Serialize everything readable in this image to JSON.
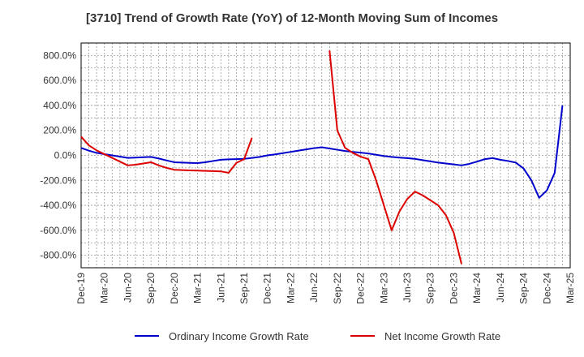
{
  "chart_data": {
    "type": "line",
    "title": "[3710]  Trend of Growth Rate (YoY) of 12-Month Moving Sum of Incomes",
    "xlabel": "",
    "ylabel": "",
    "ylim": [
      -900,
      900
    ],
    "yticks": [
      800,
      600,
      400,
      200,
      0,
      -200,
      -400,
      -600,
      -800
    ],
    "ytick_labels": [
      "800.0%",
      "600.0%",
      "400.0%",
      "200.0%",
      "0.0%",
      "-200.0%",
      "-400.0%",
      "-600.0%",
      "-800.0%"
    ],
    "x_ticks": [
      "Dec-19",
      "Mar-20",
      "Jun-20",
      "Sep-20",
      "Dec-20",
      "Mar-21",
      "Jun-21",
      "Sep-21",
      "Dec-21",
      "Mar-22",
      "Jun-22",
      "Sep-22",
      "Dec-22",
      "Mar-23",
      "Jun-23",
      "Sep-23",
      "Dec-23",
      "Mar-24",
      "Jun-24",
      "Sep-24",
      "Dec-24",
      "Mar-25"
    ],
    "x_months": [
      "2019-12",
      "2020-01",
      "2020-02",
      "2020-03",
      "2020-04",
      "2020-05",
      "2020-06",
      "2020-07",
      "2020-08",
      "2020-09",
      "2020-10",
      "2020-11",
      "2020-12",
      "2021-01",
      "2021-02",
      "2021-03",
      "2021-04",
      "2021-05",
      "2021-06",
      "2021-07",
      "2021-08",
      "2021-09",
      "2021-10",
      "2021-11",
      "2021-12",
      "2022-01",
      "2022-02",
      "2022-03",
      "2022-04",
      "2022-05",
      "2022-06",
      "2022-07",
      "2022-08",
      "2022-09",
      "2022-10",
      "2022-11",
      "2022-12",
      "2023-01",
      "2023-02",
      "2023-03",
      "2023-04",
      "2023-05",
      "2023-06",
      "2023-07",
      "2023-08",
      "2023-09",
      "2023-10",
      "2023-11",
      "2023-12",
      "2024-01",
      "2024-02",
      "2024-03",
      "2024-04",
      "2024-05",
      "2024-06",
      "2024-07",
      "2024-08",
      "2024-09",
      "2024-10",
      "2024-11",
      "2024-12",
      "2025-01",
      "2025-02",
      "2025-03"
    ],
    "grid": true,
    "legend_position": "bottom",
    "series": [
      {
        "name": "Ordinary Income Growth Rate",
        "color": "#0000cc",
        "values": [
          60,
          38,
          20,
          10,
          0,
          -10,
          -20,
          -18,
          -15,
          -12,
          -25,
          -40,
          -55,
          -58,
          -60,
          -62,
          -55,
          -45,
          -35,
          -32,
          -30,
          -28,
          -20,
          -12,
          0,
          8,
          18,
          28,
          38,
          48,
          58,
          65,
          55,
          45,
          35,
          28,
          22,
          15,
          5,
          -5,
          -12,
          -18,
          -22,
          -28,
          -38,
          -48,
          -58,
          -65,
          -72,
          -80,
          -68,
          -50,
          -30,
          -22,
          -35,
          -45,
          -58,
          -105,
          -200,
          -340,
          -280,
          -140,
          400,
          null
        ]
      },
      {
        "name": "Net Income Growth Rate",
        "color": "#dd0000",
        "values": [
          150,
          80,
          40,
          10,
          -20,
          -50,
          -80,
          -75,
          -65,
          -55,
          -80,
          -100,
          -115,
          -118,
          -120,
          -122,
          -124,
          -126,
          -128,
          -140,
          -60,
          -30,
          140,
          null,
          null,
          null,
          null,
          null,
          null,
          null,
          null,
          null,
          840,
          200,
          60,
          20,
          -10,
          -30,
          -200,
          -400,
          -600,
          -450,
          -350,
          -290,
          -320,
          -360,
          -400,
          -480,
          -620,
          -870,
          null,
          null,
          null,
          null,
          null,
          null,
          null,
          null,
          null,
          null,
          null,
          null,
          null,
          null
        ]
      }
    ]
  }
}
